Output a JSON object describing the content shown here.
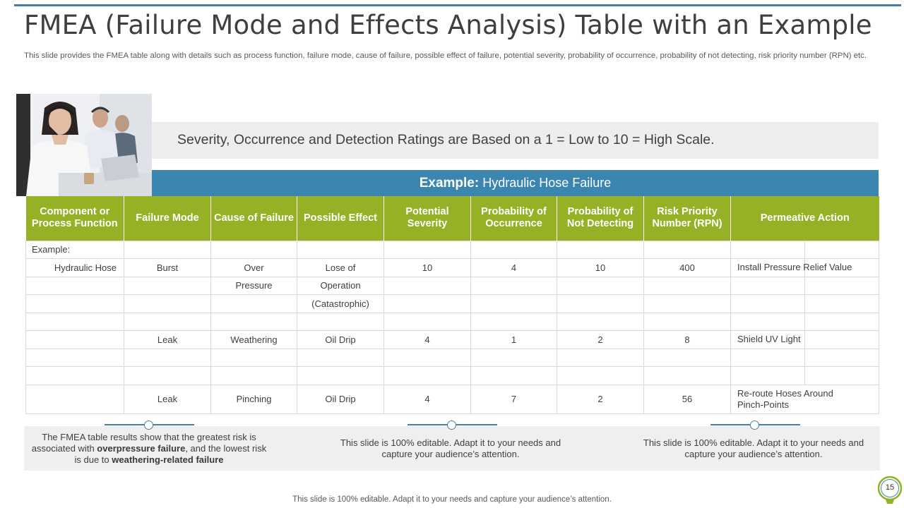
{
  "slide": {
    "title": "FMEA (Failure Mode and Effects Analysis) Table with an Example",
    "subtitle": "This slide provides the FMEA table along with details such as process function, failure mode, cause of failure, possible effect of failure, potential severity, probability of occurrence, probability of not detecting, risk priority number (RPN) etc.",
    "rating_note": "Severity, Occurrence and Detection Ratings are Based on a 1 = Low to 10 = High Scale.",
    "example_label": "Example:",
    "example_value": "Hydraulic Hose Failure",
    "footer": "This slide is 100% editable. Adapt it to your needs and capture your audience’s attention.",
    "page_number": "15",
    "accent_color": "#3b86b0",
    "header_color": "#95b125"
  },
  "table": {
    "headers": [
      "Component or Process Function",
      "Failure Mode",
      "Cause of Failure",
      "Possible Effect",
      "Potential Severity",
      "Probability of Occurrence",
      "Probability of Not Detecting",
      "Risk Priority Number (RPN)",
      "Permeative Action"
    ],
    "rows": [
      [
        "Example:",
        "",
        "",
        "",
        "",
        "",
        "",
        "",
        ""
      ],
      [
        "Hydraulic Hose",
        "Burst",
        "Over",
        "Lose of",
        "10",
        "4",
        "10",
        "400",
        "Install Pressure Relief Value"
      ],
      [
        "",
        "",
        "Pressure",
        "Operation",
        "",
        "",
        "",
        "",
        ""
      ],
      [
        "",
        "",
        "",
        "(Catastrophic)",
        "",
        "",
        "",
        "",
        ""
      ],
      [
        "",
        "",
        "",
        "",
        "",
        "",
        "",
        "",
        ""
      ],
      [
        "",
        "Leak",
        "Weathering",
        "Oil Drip",
        "4",
        "1",
        "2",
        "8",
        "Shield UV Light"
      ],
      [
        "",
        "",
        "",
        "",
        "",
        "",
        "",
        "",
        ""
      ],
      [
        "",
        "",
        "",
        "",
        "",
        "",
        "",
        "",
        ""
      ],
      [
        "",
        "Leak",
        "Pinching",
        "Oil Drip",
        "4",
        "7",
        "2",
        "56",
        "Re-route  Hoses Around Pinch-Points"
      ]
    ]
  },
  "summaries": {
    "left": {
      "text_1": "The FMEA table results show that the greatest risk is associated with ",
      "bold_1": "overpressure  failure",
      "text_2": ", and the lowest risk is due to ",
      "bold_2": "weathering-related failure"
    },
    "middle": "This slide is 100% editable. Adapt it to your needs and capture your audience’s attention.",
    "right": "This slide is 100% editable. Adapt it to your needs and capture your audience’s attention."
  },
  "icons": {
    "photo": "call-center-agents-photo",
    "page_badge": "lightbulb-badge-icon"
  }
}
